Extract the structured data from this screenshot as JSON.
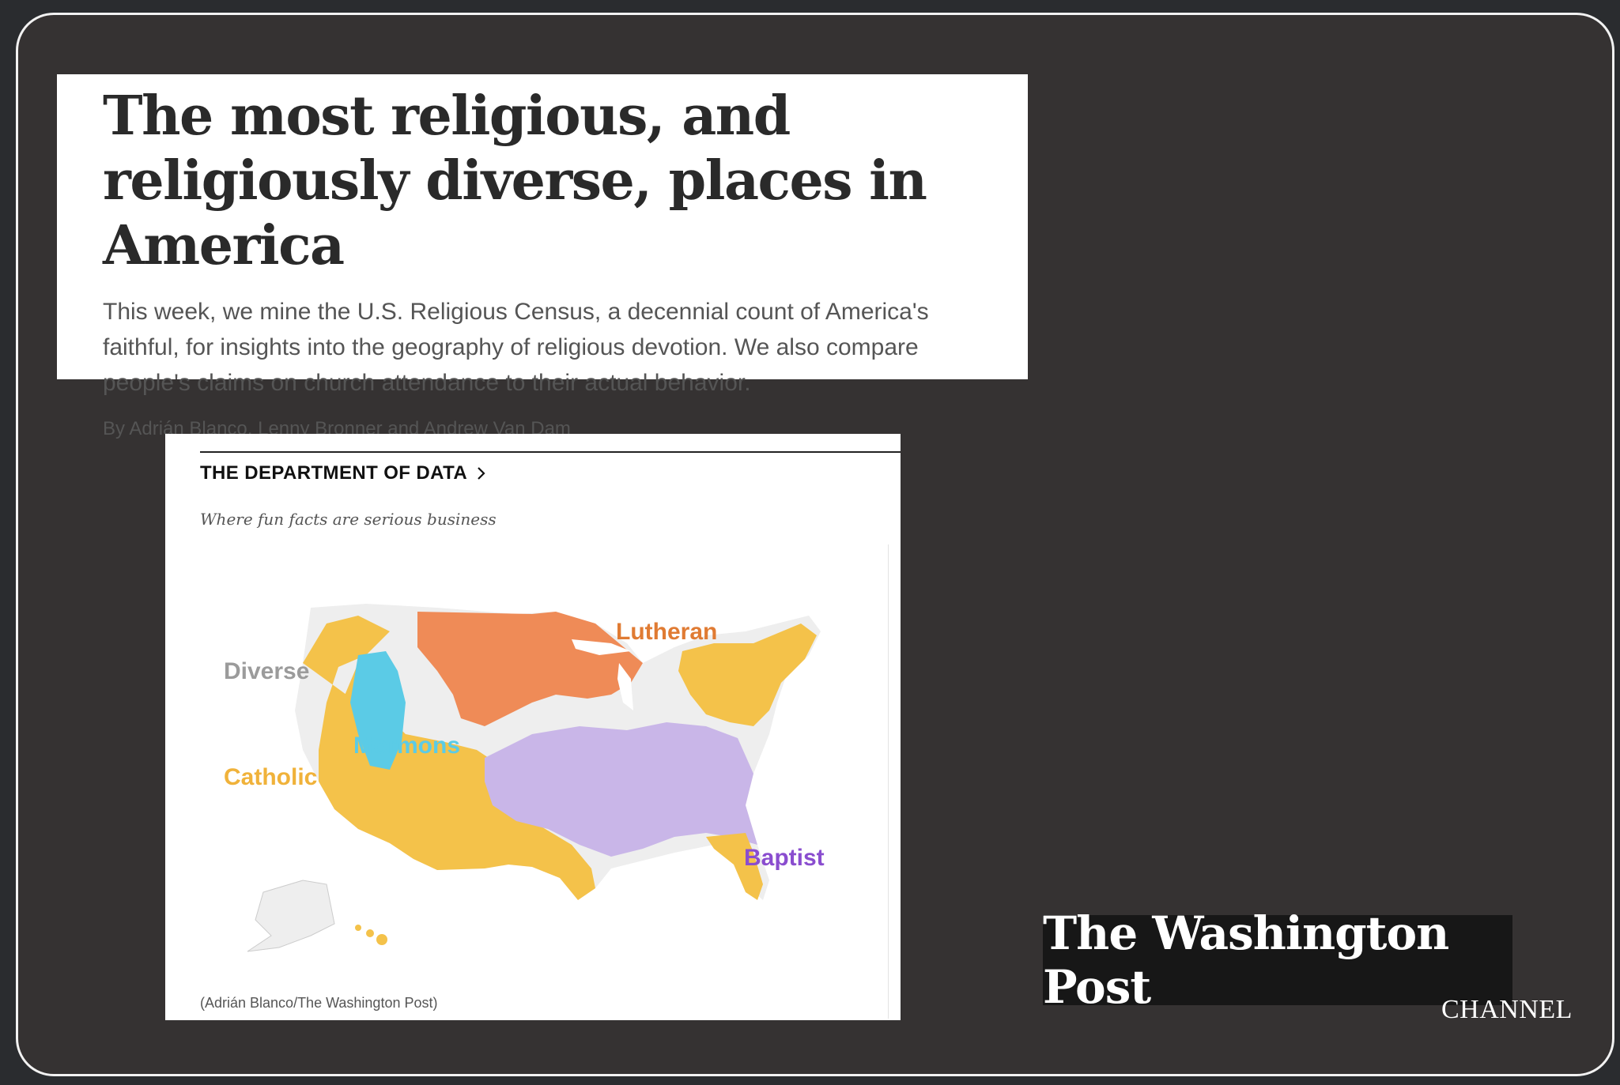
{
  "article": {
    "headline": "The most religious, and religiously diverse, places in America",
    "dek": "This week, we mine the U.S. Religious Census, a decennial count of America's faithful, for insights into the geography of religious devotion. We also compare people's claims on church attendance to their actual behavior.",
    "byline": "By Adrián Blanco, Lenny Bronner and Andrew Van Dam"
  },
  "map_card": {
    "section_title": "THE DEPARTMENT OF DATA",
    "section_chevron": "chevron-right-icon",
    "tagline": "Where fun facts are serious business",
    "credit": "(Adrián Blanco/The Washington Post)",
    "labels": {
      "lutheran": "Lutheran",
      "diverse": "Diverse",
      "mormons": "Mormons",
      "catholic": "Catholic",
      "baptist": "Baptist"
    },
    "colors": {
      "lutheran": "#ef8b57",
      "diverse": "#9b9b9b",
      "mormons": "#5bcbe6",
      "catholic": "#f4c24a",
      "baptist": "#b9a3df",
      "baptist_label": "#8a4dcf",
      "diverse_fill": "#eeeeee"
    }
  },
  "logo": {
    "name": "The Washington Post",
    "channel": "CHANNEL"
  }
}
